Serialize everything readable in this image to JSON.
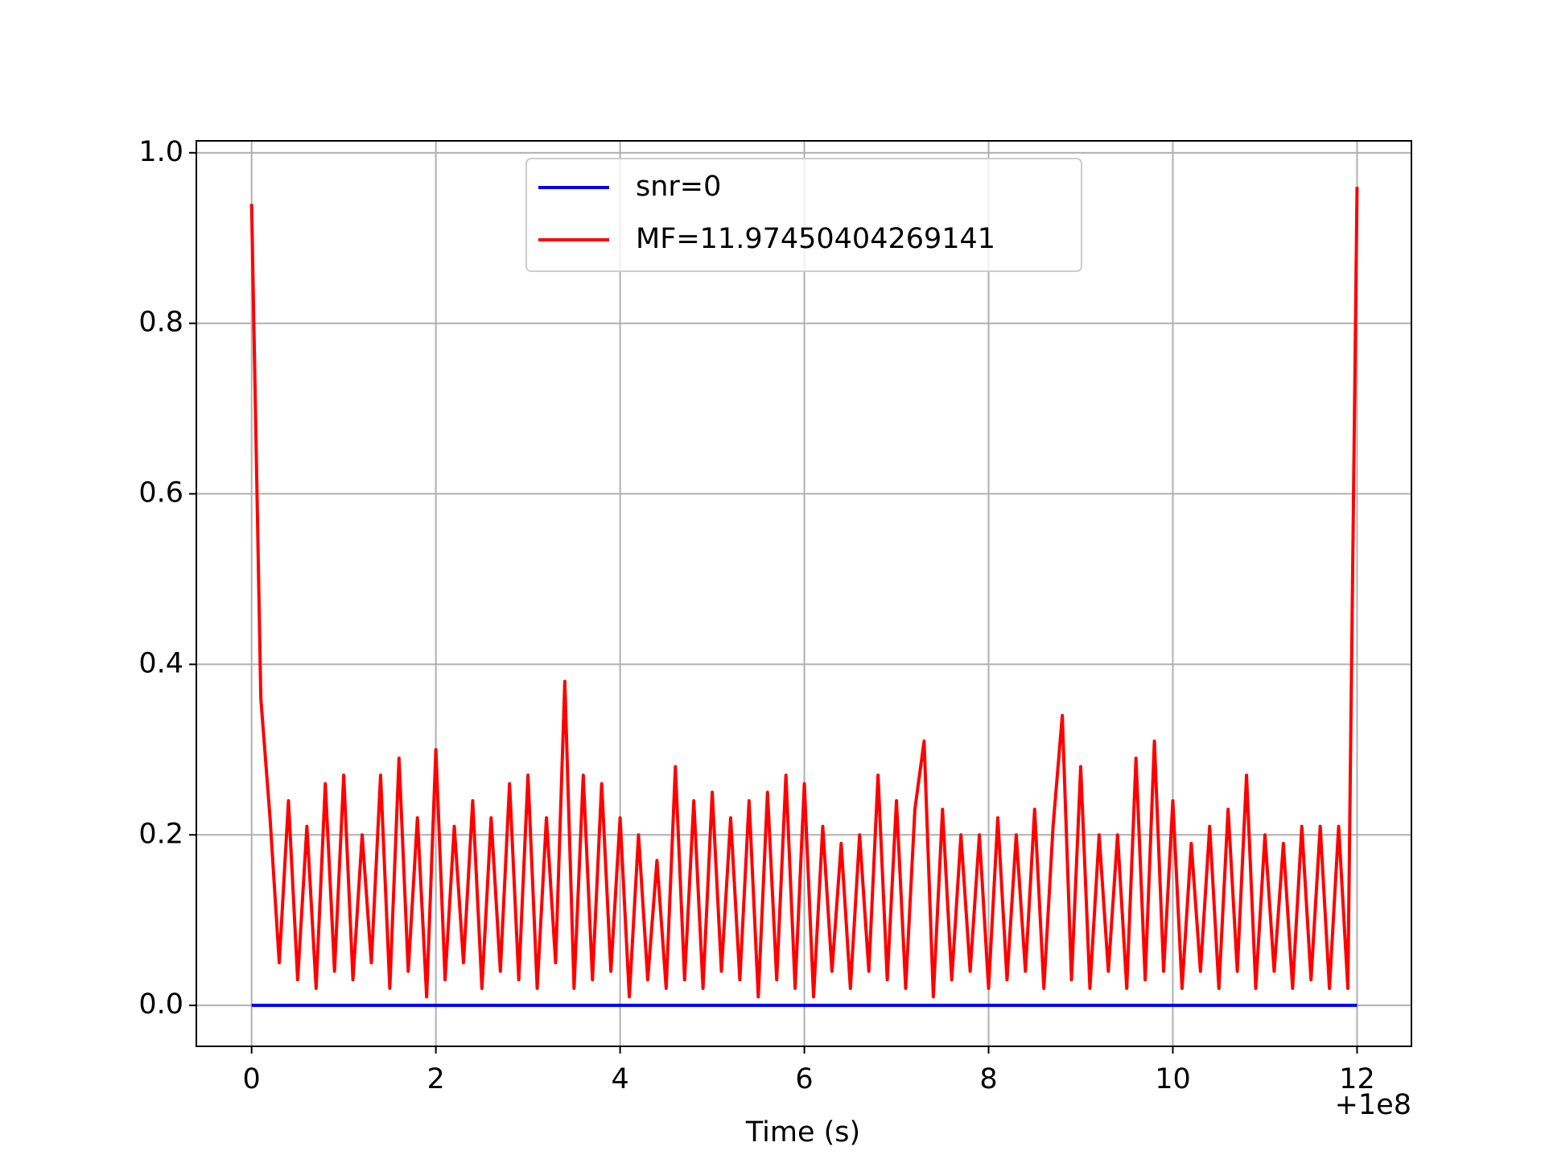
{
  "chart_data": {
    "type": "line",
    "xlabel": "Time (s)",
    "x_offset_label": "+1e8",
    "xlim": [
      -0.6,
      12.59
    ],
    "ylim": [
      -0.048,
      1.014
    ],
    "xticks": [
      0,
      2,
      4,
      6,
      8,
      10,
      12
    ],
    "yticks": [
      {
        "value": 0,
        "label": "0.0"
      },
      {
        "value": 0.2,
        "label": "0.2"
      },
      {
        "value": 0.4,
        "label": "0.4"
      },
      {
        "value": 0.6,
        "label": "0.6"
      },
      {
        "value": 0.8,
        "label": "0.8"
      },
      {
        "value": 1,
        "label": "1.0"
      }
    ],
    "grid": true,
    "legend": "upper center",
    "series": [
      {
        "name": "snr=0",
        "color": "#0000ff",
        "x": [
          0,
          12
        ],
        "values": [
          0,
          0
        ]
      },
      {
        "name": "MF=11.97450404269141",
        "color": "#ff0000",
        "x": [
          0,
          0.1,
          0.2,
          0.3,
          0.4,
          0.5,
          0.6,
          0.7,
          0.8,
          0.9,
          1,
          1.1,
          1.2,
          1.3,
          1.4,
          1.5,
          1.6,
          1.7,
          1.8,
          1.9,
          2,
          2.1,
          2.2,
          2.3,
          2.4,
          2.5,
          2.6,
          2.7,
          2.8,
          2.9,
          3,
          3.1,
          3.2,
          3.3,
          3.4,
          3.5,
          3.6,
          3.7,
          3.8,
          3.9,
          4,
          4.1,
          4.2,
          4.3,
          4.4,
          4.5,
          4.6,
          4.7,
          4.8,
          4.9,
          5,
          5.1,
          5.2,
          5.3,
          5.4,
          5.5,
          5.6,
          5.7,
          5.8,
          5.9,
          6,
          6.1,
          6.2,
          6.3,
          6.4,
          6.5,
          6.6,
          6.7,
          6.8,
          6.9,
          7,
          7.1,
          7.2,
          7.3,
          7.4,
          7.5,
          7.6,
          7.7,
          7.8,
          7.9,
          8,
          8.1,
          8.2,
          8.3,
          8.4,
          8.5,
          8.6,
          8.7,
          8.8,
          8.9,
          9,
          9.1,
          9.2,
          9.3,
          9.4,
          9.5,
          9.6,
          9.7,
          9.8,
          9.9,
          10,
          10.1,
          10.2,
          10.3,
          10.4,
          10.5,
          10.6,
          10.7,
          10.8,
          10.9,
          11,
          11.1,
          11.2,
          11.3,
          11.4,
          11.5,
          11.6,
          11.7,
          11.8,
          11.9,
          12
        ],
        "values": [
          0.94,
          0.36,
          0.22,
          0.05,
          0.24,
          0.03,
          0.21,
          0.02,
          0.26,
          0.04,
          0.27,
          0.03,
          0.2,
          0.05,
          0.27,
          0.02,
          0.29,
          0.04,
          0.22,
          0.01,
          0.3,
          0.03,
          0.21,
          0.05,
          0.24,
          0.02,
          0.22,
          0.04,
          0.26,
          0.03,
          0.27,
          0.02,
          0.22,
          0.05,
          0.38,
          0.02,
          0.27,
          0.03,
          0.26,
          0.04,
          0.22,
          0.01,
          0.2,
          0.03,
          0.17,
          0.02,
          0.28,
          0.03,
          0.24,
          0.02,
          0.25,
          0.04,
          0.22,
          0.03,
          0.24,
          0.01,
          0.25,
          0.03,
          0.27,
          0.02,
          0.26,
          0.01,
          0.21,
          0.04,
          0.19,
          0.02,
          0.2,
          0.04,
          0.27,
          0.03,
          0.24,
          0.02,
          0.23,
          0.31,
          0.01,
          0.23,
          0.03,
          0.2,
          0.04,
          0.2,
          0.02,
          0.22,
          0.03,
          0.2,
          0.04,
          0.23,
          0.02,
          0.21,
          0.34,
          0.03,
          0.28,
          0.02,
          0.2,
          0.04,
          0.2,
          0.02,
          0.29,
          0.03,
          0.31,
          0.04,
          0.24,
          0.02,
          0.19,
          0.04,
          0.21,
          0.02,
          0.23,
          0.04,
          0.27,
          0.02,
          0.2,
          0.04,
          0.19,
          0.02,
          0.21,
          0.03,
          0.21,
          0.02,
          0.21,
          0.02,
          0.96
        ]
      }
    ]
  }
}
